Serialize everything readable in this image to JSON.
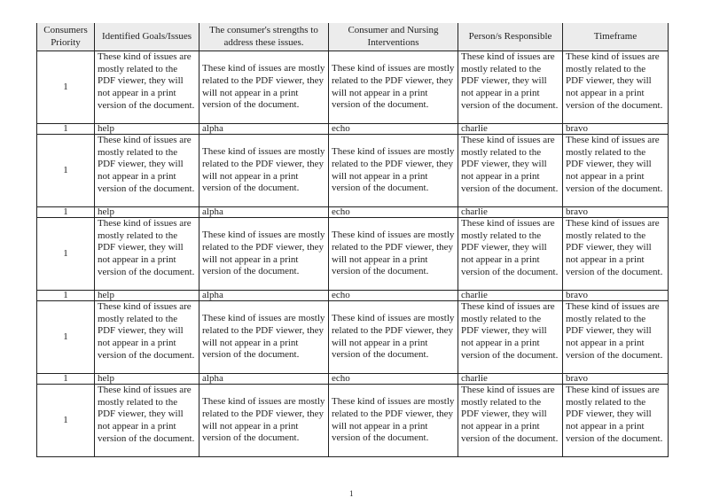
{
  "table": {
    "headers": [
      "Consumers Priority",
      "Identified Goals/Issues",
      "The consumer's strengths to address these issues.",
      "Consumer and Nursing Interventions",
      "Person/s Responsible",
      "Timeframe"
    ],
    "rows": [
      {
        "type": "long",
        "cells": [
          "1",
          "These kind of issues are mostly related to the PDF viewer, they will not appear in a print version of the document.",
          "These kind of issues are mostly related to the PDF viewer, they will not appear in a print version of the document.",
          "These kind of issues are mostly related to the PDF viewer, they will not appear in a print version of the document.",
          "These kind of issues are mostly related to the PDF viewer, they will not appear in a print version of the document.",
          "These kind of issues are mostly related to the PDF viewer, they will not appear in a print version of the document."
        ]
      },
      {
        "type": "short",
        "cells": [
          "1",
          "help",
          "alpha",
          "echo",
          "charlie",
          "bravo"
        ]
      },
      {
        "type": "long",
        "cells": [
          "1",
          "These kind of issues are mostly related to the PDF viewer, they will not appear in a print version of the document.",
          "These kind of issues are mostly related to the PDF viewer, they will not appear in a print version of the document.",
          "These kind of issues are mostly related to the PDF viewer, they will not appear in a print version of the document.",
          "These kind of issues are mostly related to the PDF viewer, they will not appear in a print version of the document.",
          "These kind of issues are mostly related to the PDF viewer, they will not appear in a print version of the document."
        ]
      },
      {
        "type": "short",
        "cells": [
          "1",
          "help",
          "alpha",
          "echo",
          "charlie",
          "bravo"
        ]
      },
      {
        "type": "long",
        "cells": [
          "1",
          "These kind of issues are mostly related to the PDF viewer, they will not appear in a print version of the document.",
          "These kind of issues are mostly related to the PDF viewer, they will not appear in a print version of the document.",
          "These kind of issues are mostly related to the PDF viewer, they will not appear in a print version of the document.",
          "These kind of issues are mostly related to the PDF viewer, they will not appear in a print version of the document.",
          "These kind of issues are mostly related to the PDF viewer, they will not appear in a print version of the document."
        ]
      },
      {
        "type": "short",
        "cells": [
          "1",
          "help",
          "alpha",
          "echo",
          "charlie",
          "bravo"
        ]
      },
      {
        "type": "long",
        "cells": [
          "1",
          "These kind of issues are mostly related to the PDF viewer, they will not appear in a print version of the document.",
          "These kind of issues are mostly related to the PDF viewer, they will not appear in a print version of the document.",
          "These kind of issues are mostly related to the PDF viewer, they will not appear in a print version of the document.",
          "These kind of issues are mostly related to the PDF viewer, they will not appear in a print version of the document.",
          "These kind of issues are mostly related to the PDF viewer, they will not appear in a print version of the document."
        ]
      },
      {
        "type": "short",
        "cells": [
          "1",
          "help",
          "alpha",
          "echo",
          "charlie",
          "bravo"
        ]
      },
      {
        "type": "long",
        "cells": [
          "1",
          "These kind of issues are mostly related to the PDF viewer, they will not appear in a print version of the document.",
          "These kind of issues are mostly related to the PDF viewer, they will not appear in a print version of the document.",
          "These kind of issues are mostly related to the PDF viewer, they will not appear in a print version of the document.",
          "These kind of issues are mostly related to the PDF viewer, they will not appear in a print version of the document.",
          "These kind of issues are mostly related to the PDF viewer, they will not appear in a print version of the document."
        ]
      }
    ]
  },
  "page_number": "1"
}
